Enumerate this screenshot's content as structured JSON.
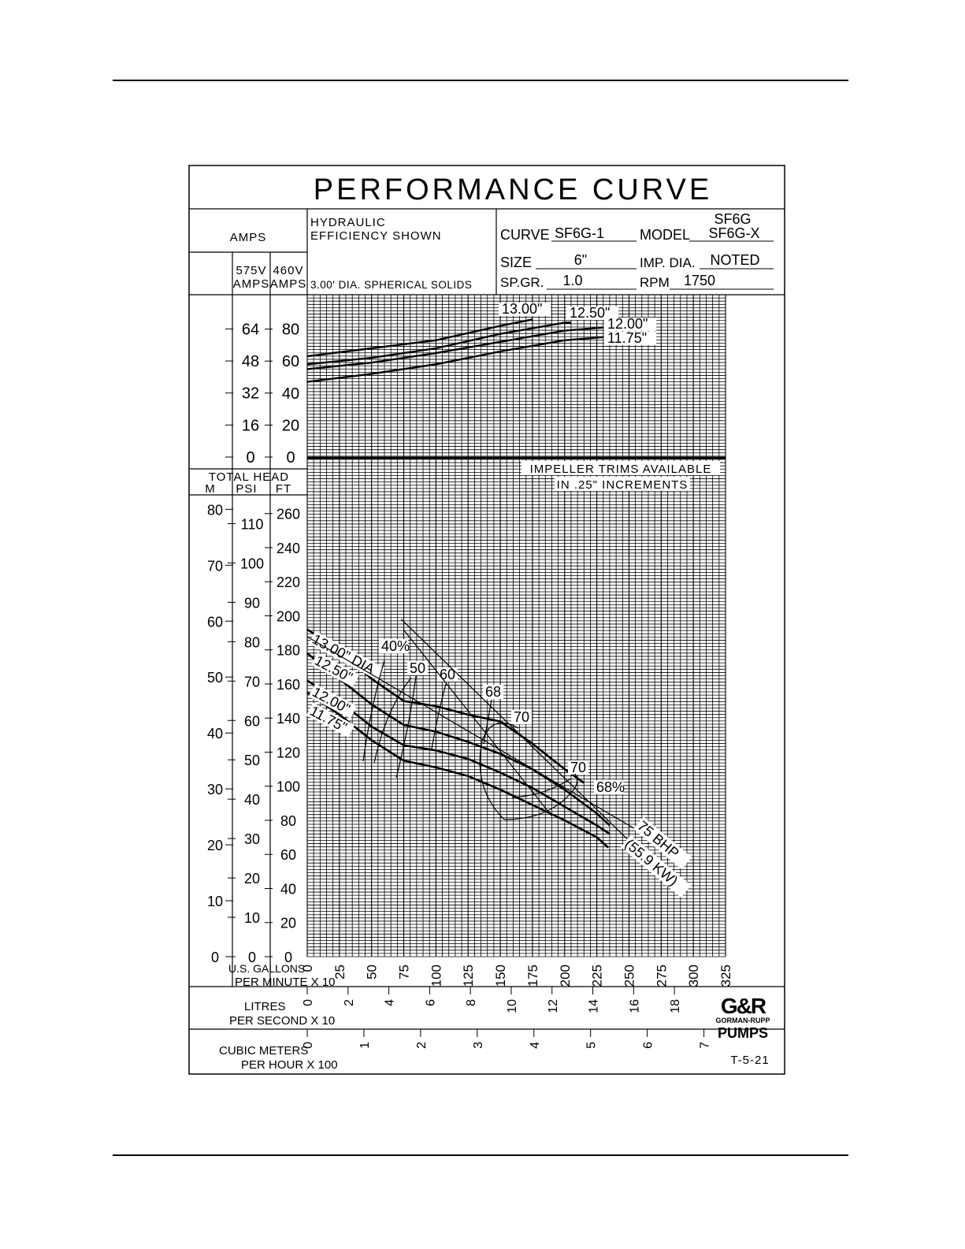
{
  "title": "PERFORMANCE CURVE",
  "header": {
    "amps": "AMPS",
    "v575": "575V",
    "v460": "460V",
    "amps_unit": "AMPS",
    "hydraulic1": "HYDRAULIC",
    "hydraulic2": "EFFICIENCY SHOWN",
    "solids": "3.00' DIA. SPHERICAL SOLIDS",
    "curve_label": "CURVE",
    "curve_value": "SF6G-1",
    "model_label": "MODEL",
    "model_value1": "SF6G",
    "model_value2": "SF6G-X",
    "size_label": "SIZE",
    "size_value": "6\"",
    "imp_label": "IMP. DIA.",
    "imp_value": "NOTED",
    "spgr_label": "SP.GR.",
    "spgr_value": "1.0",
    "rpm_label": "RPM",
    "rpm_value": "1750"
  },
  "axes": {
    "total_head": "TOTAL HEAD",
    "m": "M",
    "psi": "PSI",
    "ft": "FT",
    "gpm1": "U.S. GALLONS",
    "gpm2": "PER MINUTE X 10",
    "lps1": "LITRES",
    "lps2": "PER SECOND X 10",
    "cmh1": "CUBIC METERS",
    "cmh2": "PER HOUR X 100"
  },
  "notes": {
    "trims1": "IMPELLER TRIMS AVAILABLE",
    "trims2": "IN .25\" INCREMENTS",
    "bhp": "75 BHP",
    "kw": "(55.9 KW)",
    "code": "T-5-21"
  },
  "logo": {
    "mark": "G&R",
    "line1": "GORMAN-RUPP",
    "line2": "PUMPS"
  },
  "chart_data": {
    "type": "line",
    "title": "PERFORMANCE CURVE",
    "x_label": "U.S. GALLONS PER MINUTE X 10",
    "x_range": [
      0,
      325
    ],
    "x_ticks": [
      0,
      25,
      50,
      75,
      100,
      125,
      150,
      175,
      200,
      225,
      250,
      275,
      300,
      325
    ],
    "head_ft_range": [
      0,
      280
    ],
    "head_ft_ticks": [
      0,
      20,
      40,
      60,
      80,
      100,
      120,
      140,
      160,
      180,
      200,
      220,
      240,
      260
    ],
    "head_psi_ticks": [
      0,
      10,
      20,
      30,
      40,
      50,
      60,
      70,
      80,
      90,
      100,
      110
    ],
    "head_m_ticks": [
      0,
      10,
      20,
      30,
      40,
      50,
      60,
      70,
      80
    ],
    "amps460_range": [
      0,
      100
    ],
    "amps460_ticks": [
      0,
      20,
      40,
      60,
      80
    ],
    "amps575_ticks": [
      0,
      16,
      32,
      48,
      64
    ],
    "lps_ticks": [
      0,
      2,
      4,
      6,
      8,
      10,
      12,
      14,
      16,
      18
    ],
    "cmh_ticks": [
      0,
      1,
      2,
      3,
      4,
      5,
      6,
      7
    ],
    "head_curves": [
      {
        "name": "13.00\" DIA",
        "x": [
          0,
          25,
          50,
          75,
          100,
          125,
          150,
          175,
          200,
          215
        ],
        "y": [
          192,
          180,
          163,
          150,
          147,
          142,
          138,
          125,
          110,
          102
        ]
      },
      {
        "name": "12.50\"",
        "x": [
          0,
          25,
          50,
          75,
          100,
          125,
          150,
          175,
          200,
          225,
          235
        ],
        "y": [
          178,
          163,
          148,
          136,
          132,
          126,
          119,
          110,
          98,
          84,
          77
        ]
      },
      {
        "name": "12.00\"",
        "x": [
          0,
          25,
          50,
          75,
          100,
          125,
          150,
          175,
          200,
          225,
          235
        ],
        "y": [
          162,
          150,
          135,
          124,
          121,
          116,
          108,
          99,
          88,
          77,
          72
        ]
      },
      {
        "name": "11.75\"",
        "x": [
          0,
          25,
          50,
          75,
          100,
          125,
          150,
          175,
          200,
          225,
          234
        ],
        "y": [
          155,
          142,
          127,
          115,
          111,
          106,
          98,
          89,
          80,
          70,
          64
        ]
      }
    ],
    "amp_curves_460v": [
      {
        "name": "13.00\"",
        "x": [
          0,
          50,
          100,
          150,
          175
        ],
        "y": [
          63,
          68,
          73,
          82,
          86
        ]
      },
      {
        "name": "12.50\"",
        "x": [
          0,
          50,
          100,
          150,
          200,
          205
        ],
        "y": [
          58,
          62,
          68,
          77,
          84,
          84
        ]
      },
      {
        "name": "12.00\"",
        "x": [
          0,
          50,
          100,
          150,
          200,
          230
        ],
        "y": [
          55,
          59,
          65,
          72,
          79,
          81
        ]
      },
      {
        "name": "11.75\"",
        "x": [
          0,
          50,
          100,
          150,
          200,
          230
        ],
        "y": [
          47,
          52,
          58,
          66,
          73,
          75
        ]
      }
    ],
    "efficiency_labels": [
      "40%",
      "50",
      "60",
      "68",
      "70",
      "70",
      "68%"
    ],
    "power_line": {
      "label": "75 BHP (55.9 KW)",
      "x": [
        73,
        250
      ],
      "y": [
        198,
        68
      ]
    }
  }
}
